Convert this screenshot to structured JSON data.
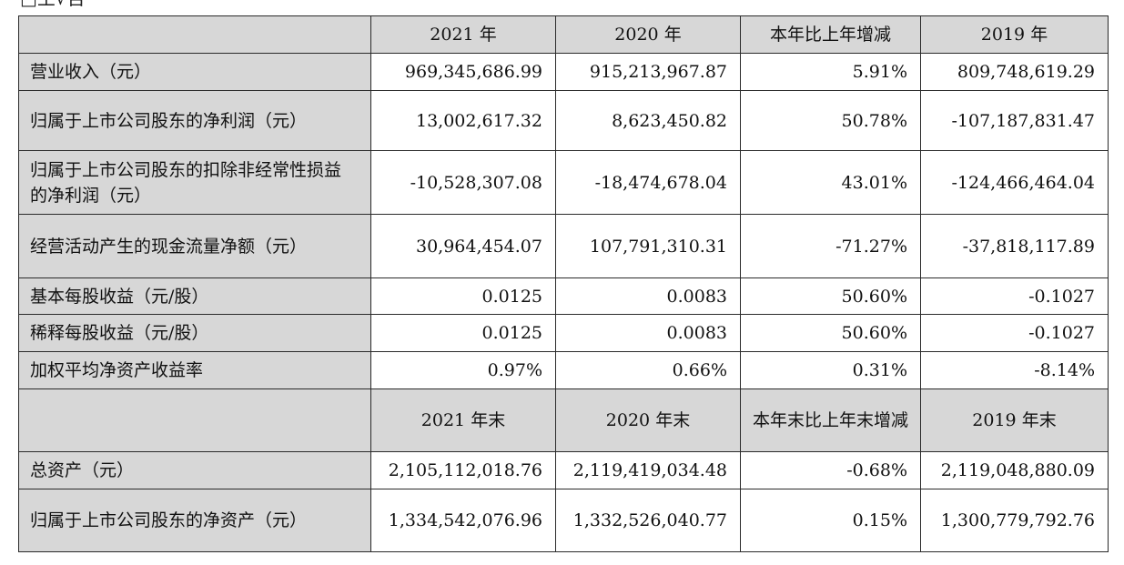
{
  "fragment_top": "□主√否",
  "header1": [
    "",
    "2021 年",
    "2020 年",
    "本年比上年增减",
    "2019 年"
  ],
  "rows1": [
    {
      "label": "营业收入（元）",
      "v": [
        "969,345,686.99",
        "915,213,967.87",
        "5.91%",
        "809,748,619.29"
      ]
    },
    {
      "label": "归属于上市公司股东的净利润（元）",
      "v": [
        "13,002,617.32",
        "8,623,450.82",
        "50.78%",
        "-107,187,831.47"
      ]
    },
    {
      "label": "归属于上市公司股东的扣除非经常性损益的净利润（元）",
      "v": [
        "-10,528,307.08",
        "-18,474,678.04",
        "43.01%",
        "-124,466,464.04"
      ]
    },
    {
      "label": "经营活动产生的现金流量净额（元）",
      "v": [
        "30,964,454.07",
        "107,791,310.31",
        "-71.27%",
        "-37,818,117.89"
      ]
    },
    {
      "label": "基本每股收益（元/股）",
      "v": [
        "0.0125",
        "0.0083",
        "50.60%",
        "-0.1027"
      ]
    },
    {
      "label": "稀释每股收益（元/股）",
      "v": [
        "0.0125",
        "0.0083",
        "50.60%",
        "-0.1027"
      ]
    },
    {
      "label": "加权平均净资产收益率",
      "v": [
        "0.97%",
        "0.66%",
        "0.31%",
        "-8.14%"
      ]
    }
  ],
  "header2": [
    "",
    "2021 年末",
    "2020 年末",
    "本年末比上年末增减",
    "2019 年末"
  ],
  "rows2": [
    {
      "label": "总资产（元）",
      "v": [
        "2,105,112,018.76",
        "2,119,419,034.48",
        "-0.68%",
        "2,119,048,880.09"
      ]
    },
    {
      "label": "归属于上市公司股东的净资产（元）",
      "v": [
        "1,334,542,076.96",
        "1,332,526,040.77",
        "0.15%",
        "1,300,779,792.76"
      ]
    }
  ]
}
